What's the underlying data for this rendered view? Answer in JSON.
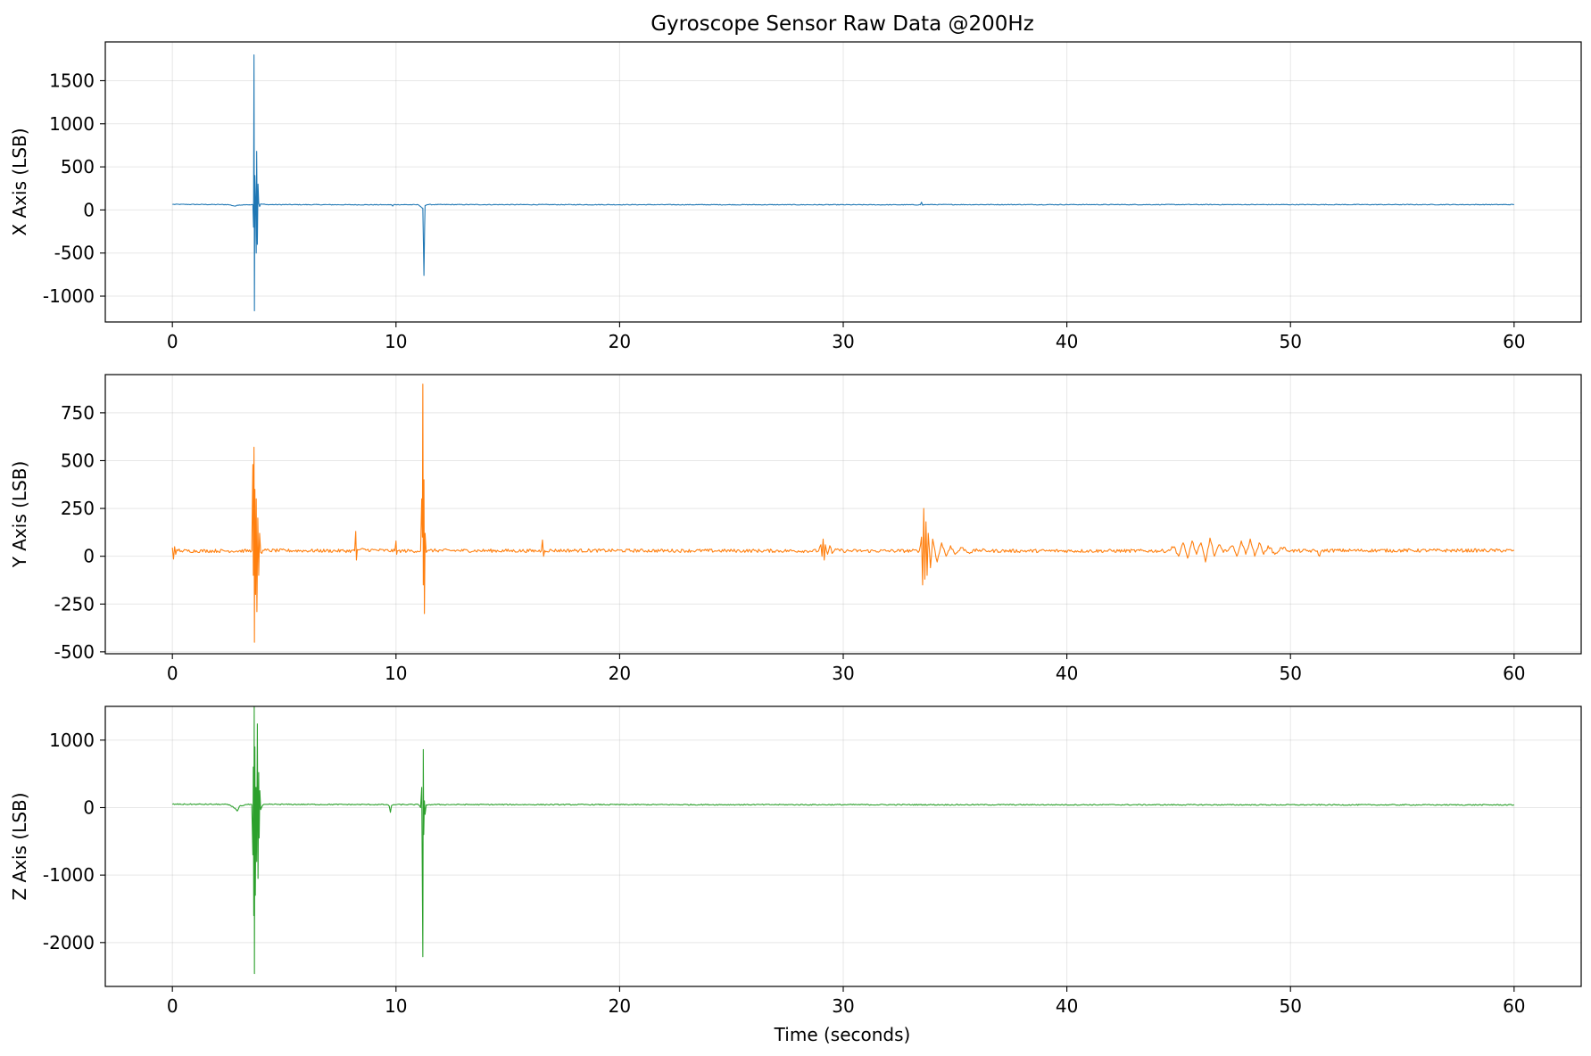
{
  "chart_data": {
    "type": "line",
    "title": "Gyroscope Sensor Raw Data @200Hz",
    "xlabel": "Time (seconds)",
    "xlim": [
      -3,
      63
    ],
    "xticks": [
      0,
      10,
      20,
      30,
      40,
      50,
      60
    ],
    "grid": true,
    "subplots": [
      {
        "name": "x-axis",
        "ylabel": "X Axis (LSB)",
        "color": "#1f77b4",
        "ylim": [
          -1300,
          1950
        ],
        "yticks": [
          -1000,
          -500,
          0,
          500,
          1000,
          1500
        ],
        "baseline": 60,
        "noise": 4,
        "points": [
          [
            0,
            65
          ],
          [
            2.5,
            62
          ],
          [
            2.8,
            45
          ],
          [
            3.0,
            58
          ],
          [
            3.3,
            62
          ],
          [
            3.6,
            60
          ],
          [
            3.63,
            -200
          ],
          [
            3.65,
            1800
          ],
          [
            3.67,
            -1170
          ],
          [
            3.69,
            400
          ],
          [
            3.72,
            120
          ],
          [
            3.75,
            -500
          ],
          [
            3.77,
            680
          ],
          [
            3.8,
            -400
          ],
          [
            3.83,
            300
          ],
          [
            3.86,
            80
          ],
          [
            3.9,
            40
          ],
          [
            3.95,
            70
          ],
          [
            4.2,
            62
          ],
          [
            9.8,
            60
          ],
          [
            9.85,
            45
          ],
          [
            9.9,
            62
          ],
          [
            11.0,
            60
          ],
          [
            11.1,
            40
          ],
          [
            11.2,
            20
          ],
          [
            11.25,
            -760
          ],
          [
            11.28,
            -200
          ],
          [
            11.3,
            50
          ],
          [
            11.4,
            62
          ],
          [
            33.45,
            60
          ],
          [
            33.5,
            90
          ],
          [
            33.55,
            55
          ],
          [
            33.6,
            62
          ],
          [
            60,
            62
          ]
        ]
      },
      {
        "name": "y-axis",
        "ylabel": "Y Axis (LSB)",
        "color": "#ff7f0e",
        "ylim": [
          -510,
          950
        ],
        "yticks": [
          -500,
          -250,
          0,
          250,
          500,
          750
        ],
        "baseline": 28,
        "noise": 9,
        "points": [
          [
            0,
            45
          ],
          [
            0.05,
            -15
          ],
          [
            0.1,
            50
          ],
          [
            0.15,
            10
          ],
          [
            0.2,
            35
          ],
          [
            0.4,
            28
          ],
          [
            3.55,
            28
          ],
          [
            3.6,
            480
          ],
          [
            3.62,
            -100
          ],
          [
            3.65,
            570
          ],
          [
            3.67,
            -450
          ],
          [
            3.69,
            350
          ],
          [
            3.72,
            -200
          ],
          [
            3.75,
            300
          ],
          [
            3.78,
            -290
          ],
          [
            3.82,
            200
          ],
          [
            3.86,
            -100
          ],
          [
            3.9,
            120
          ],
          [
            3.95,
            20
          ],
          [
            4.1,
            30
          ],
          [
            8.15,
            28
          ],
          [
            8.2,
            130
          ],
          [
            8.23,
            -20
          ],
          [
            8.27,
            35
          ],
          [
            9.95,
            28
          ],
          [
            10.0,
            80
          ],
          [
            10.03,
            10
          ],
          [
            10.06,
            28
          ],
          [
            11.1,
            28
          ],
          [
            11.15,
            300
          ],
          [
            11.18,
            100
          ],
          [
            11.2,
            900
          ],
          [
            11.22,
            -150
          ],
          [
            11.25,
            400
          ],
          [
            11.27,
            -300
          ],
          [
            11.3,
            120
          ],
          [
            11.35,
            20
          ],
          [
            11.5,
            30
          ],
          [
            16.5,
            28
          ],
          [
            16.55,
            85
          ],
          [
            16.6,
            0
          ],
          [
            16.65,
            30
          ],
          [
            28.9,
            28
          ],
          [
            29.0,
            60
          ],
          [
            29.05,
            0
          ],
          [
            29.1,
            90
          ],
          [
            29.15,
            -20
          ],
          [
            29.2,
            60
          ],
          [
            29.3,
            10
          ],
          [
            29.4,
            55
          ],
          [
            29.5,
            15
          ],
          [
            29.7,
            35
          ],
          [
            30.0,
            28
          ],
          [
            33.4,
            28
          ],
          [
            33.5,
            100
          ],
          [
            33.55,
            -150
          ],
          [
            33.6,
            250
          ],
          [
            33.65,
            -120
          ],
          [
            33.7,
            180
          ],
          [
            33.75,
            -100
          ],
          [
            33.8,
            120
          ],
          [
            33.9,
            -60
          ],
          [
            34.0,
            90
          ],
          [
            34.2,
            -30
          ],
          [
            34.4,
            70
          ],
          [
            34.6,
            0
          ],
          [
            34.8,
            55
          ],
          [
            35.0,
            10
          ],
          [
            35.3,
            45
          ],
          [
            35.6,
            20
          ],
          [
            36.0,
            32
          ],
          [
            36.5,
            28
          ],
          [
            44.5,
            28
          ],
          [
            44.8,
            50
          ],
          [
            45.0,
            0
          ],
          [
            45.2,
            70
          ],
          [
            45.4,
            -10
          ],
          [
            45.6,
            80
          ],
          [
            45.8,
            10
          ],
          [
            46.0,
            70
          ],
          [
            46.2,
            -30
          ],
          [
            46.4,
            95
          ],
          [
            46.6,
            0
          ],
          [
            46.8,
            60
          ],
          [
            47.0,
            20
          ],
          [
            47.4,
            55
          ],
          [
            47.6,
            0
          ],
          [
            47.8,
            80
          ],
          [
            48.0,
            10
          ],
          [
            48.2,
            90
          ],
          [
            48.4,
            0
          ],
          [
            48.6,
            70
          ],
          [
            48.8,
            10
          ],
          [
            49.0,
            55
          ],
          [
            49.3,
            10
          ],
          [
            49.6,
            45
          ],
          [
            50.0,
            28
          ],
          [
            51.2,
            28
          ],
          [
            51.3,
            0
          ],
          [
            51.4,
            30
          ],
          [
            60,
            30
          ]
        ]
      },
      {
        "name": "z-axis",
        "ylabel": "Z Axis (LSB)",
        "color": "#2ca02c",
        "ylim": [
          -2650,
          1500
        ],
        "yticks": [
          -2000,
          -1000,
          0,
          1000
        ],
        "baseline": 45,
        "noise": 8,
        "points": [
          [
            0,
            50
          ],
          [
            2.4,
            48
          ],
          [
            2.6,
            30
          ],
          [
            2.8,
            -10
          ],
          [
            2.9,
            -50
          ],
          [
            3.0,
            20
          ],
          [
            3.3,
            45
          ],
          [
            3.55,
            45
          ],
          [
            3.6,
            -700
          ],
          [
            3.62,
            600
          ],
          [
            3.64,
            -1600
          ],
          [
            3.66,
            1500
          ],
          [
            3.67,
            -2460
          ],
          [
            3.69,
            900
          ],
          [
            3.71,
            -1300
          ],
          [
            3.74,
            300
          ],
          [
            3.77,
            -800
          ],
          [
            3.8,
            1240
          ],
          [
            3.83,
            -1050
          ],
          [
            3.86,
            520
          ],
          [
            3.88,
            -450
          ],
          [
            3.91,
            250
          ],
          [
            3.95,
            -30
          ],
          [
            4.05,
            40
          ],
          [
            4.3,
            48
          ],
          [
            9.6,
            45
          ],
          [
            9.7,
            20
          ],
          [
            9.75,
            -70
          ],
          [
            9.8,
            30
          ],
          [
            9.9,
            45
          ],
          [
            11.0,
            45
          ],
          [
            11.1,
            0
          ],
          [
            11.15,
            300
          ],
          [
            11.2,
            -2210
          ],
          [
            11.22,
            860
          ],
          [
            11.24,
            -400
          ],
          [
            11.27,
            100
          ],
          [
            11.3,
            -100
          ],
          [
            11.35,
            40
          ],
          [
            11.5,
            45
          ],
          [
            60,
            40
          ]
        ]
      }
    ]
  }
}
